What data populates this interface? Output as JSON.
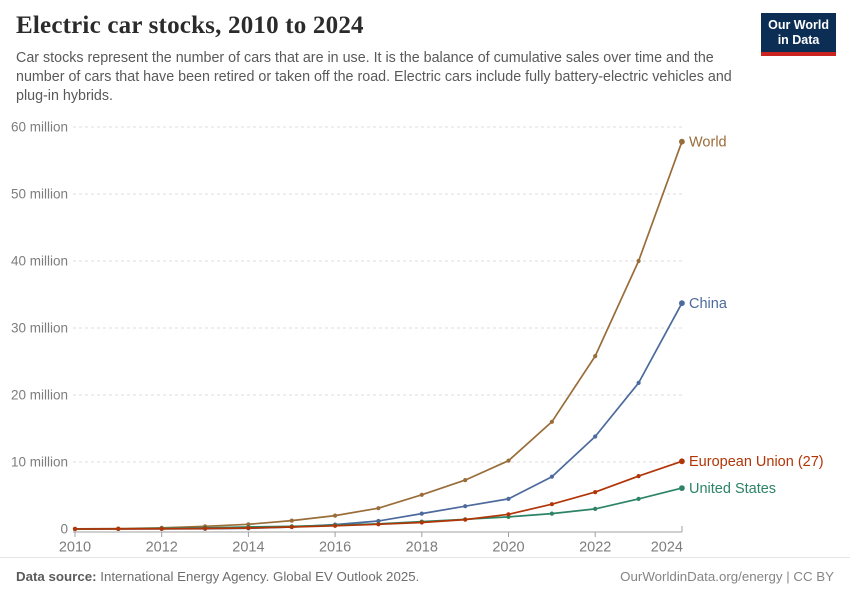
{
  "header": {
    "title": "Electric car stocks, 2010 to 2024",
    "subtitle": "Car stocks represent the number of cars that are in use. It is the balance of cumulative sales over time and the number of cars that have been retired or taken off the road. Electric cars include fully battery-electric vehicles and plug-in hybrids.",
    "logo": {
      "line1": "Our World",
      "line2": "in Data",
      "bg_color": "#0d2e54",
      "stripe_color": "#cb2420"
    }
  },
  "chart_data": {
    "type": "line",
    "title": "Electric car stocks, 2010 to 2024",
    "xlabel": "",
    "ylabel": "",
    "unit": "million cars",
    "x": [
      2010,
      2011,
      2012,
      2013,
      2014,
      2015,
      2016,
      2017,
      2018,
      2019,
      2020,
      2021,
      2022,
      2023,
      2024
    ],
    "series": [
      {
        "name": "World",
        "color": "#996D39",
        "values": [
          0.02,
          0.06,
          0.18,
          0.4,
          0.7,
          1.25,
          2.0,
          3.1,
          5.1,
          7.3,
          10.2,
          16.0,
          25.8,
          40.0,
          57.8
        ]
      },
      {
        "name": "China",
        "color": "#4C6A9C",
        "values": [
          0.0,
          0.01,
          0.02,
          0.03,
          0.1,
          0.3,
          0.65,
          1.2,
          2.3,
          3.4,
          4.5,
          7.8,
          13.8,
          21.8,
          33.7
        ]
      },
      {
        "name": "United States",
        "color": "#2C8465",
        "values": [
          0.0,
          0.02,
          0.07,
          0.17,
          0.3,
          0.4,
          0.56,
          0.76,
          1.1,
          1.45,
          1.8,
          2.3,
          3.0,
          4.5,
          6.1
        ]
      },
      {
        "name": "European Union (27)",
        "color": "#B13507",
        "values": [
          0.0,
          0.01,
          0.03,
          0.07,
          0.15,
          0.3,
          0.48,
          0.7,
          0.97,
          1.4,
          2.2,
          3.7,
          5.5,
          7.9,
          10.1
        ]
      }
    ],
    "ylim": [
      0,
      60
    ],
    "y_ticks": [
      0,
      10,
      20,
      30,
      40,
      50,
      60
    ],
    "y_tick_labels": [
      "0",
      "10 million",
      "20 million",
      "30 million",
      "40 million",
      "50 million",
      "60 million"
    ],
    "x_ticks": [
      2010,
      2012,
      2014,
      2016,
      2018,
      2020,
      2022,
      2024
    ],
    "grid": "horizontal dashed",
    "legend_position": "end-of-line labels"
  },
  "footer": {
    "source_label": "Data source:",
    "source_text": " International Energy Agency. Global EV Outlook 2025.",
    "link_text": "OurWorldinData.org/energy | CC BY"
  }
}
